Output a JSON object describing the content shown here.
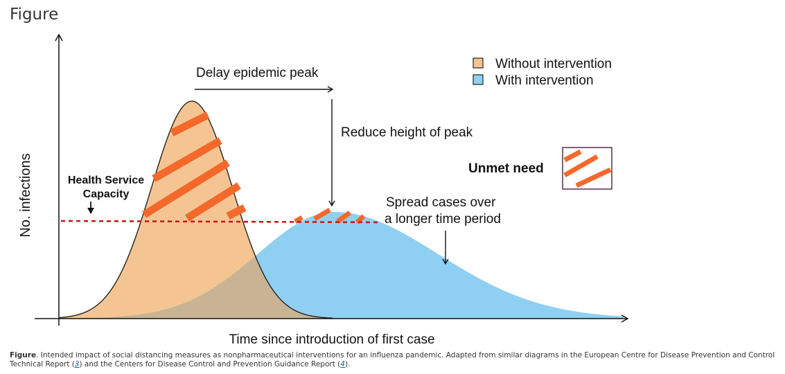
{
  "heading": "Figure",
  "diagram": {
    "y_axis_label": "No. infections",
    "x_axis_label": "Time since introduction of first case",
    "legend": {
      "without": "Without intervention",
      "with": "With intervention"
    },
    "annotations": {
      "delay_peak": "Delay epidemic peak",
      "reduce_height": "Reduce height of peak",
      "spread_line1": "Spread cases over",
      "spread_line2": "a longer time period",
      "capacity_line1": "Health Service",
      "capacity_line2": "Capacity",
      "unmet_need": "Unmet need"
    },
    "colors": {
      "without_fill": "#f4c592",
      "with_fill": "#8fd0f2",
      "overlap_fill": "#c8b494",
      "capacity_line": "#c8191b",
      "unmet_hatch": "#f4692b",
      "legend_box_without": "#f4c592",
      "legend_box_with": "#8fd0f2",
      "unmet_box_border": "#5a2a4a"
    }
  },
  "caption": {
    "bold": "Figure",
    "text_1": ". Intended impact of social distancing measures as nonpharmaceutical interventions for an influenza pandemic. Adapted from similar diagrams in the European Centre for Disease Prevention and Control Technical Report (",
    "ref_1": "3",
    "text_2": ") and the Centers for Disease Control and Prevention Guidance Report (",
    "ref_2": "4",
    "text_3": ")."
  }
}
